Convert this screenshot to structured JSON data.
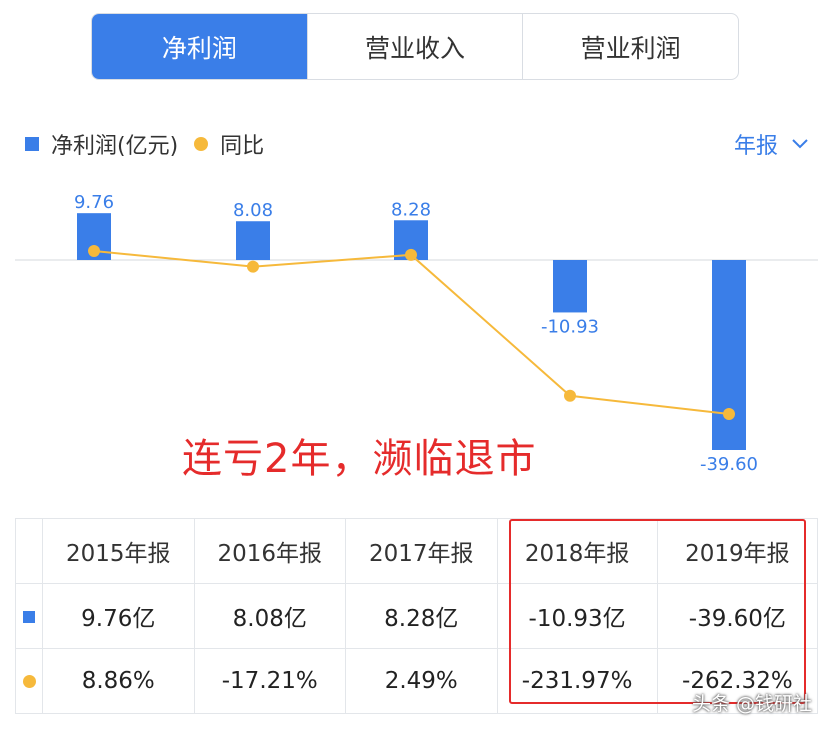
{
  "tabs": [
    {
      "label": "净利润",
      "active": true
    },
    {
      "label": "营业收入",
      "active": false
    },
    {
      "label": "营业利润",
      "active": false
    }
  ],
  "legend": {
    "series1": "净利润(亿元)",
    "series2": "同比"
  },
  "period": {
    "label": "年报"
  },
  "annotation": "连亏2年，濒临退市",
  "table": {
    "headers": [
      "2015年报",
      "2016年报",
      "2017年报",
      "2018年报",
      "2019年报"
    ],
    "profit_row": [
      "9.76亿",
      "8.08亿",
      "8.28亿",
      "-10.93亿",
      "-39.60亿"
    ],
    "yoy_row": [
      "8.86%",
      "-17.21%",
      "2.49%",
      "-231.97%",
      "-262.32%"
    ]
  },
  "watermark": "头条 @钱研社",
  "colors": {
    "bar": "#3a7ee8",
    "line": "#f6b93b",
    "accent": "#3a7ee8",
    "positive": "#e04848",
    "negative": "#2aa86a",
    "highlight": "#e52b2b"
  },
  "chart_data": {
    "type": "bar",
    "categories": [
      "2015年报",
      "2016年报",
      "2017年报",
      "2018年报",
      "2019年报"
    ],
    "series": [
      {
        "name": "净利润(亿元)",
        "type": "bar",
        "values": [
          9.76,
          8.08,
          8.28,
          -10.93,
          -39.6
        ],
        "labels": [
          "9.76",
          "8.08",
          "8.28",
          "-10.93",
          "-39.60"
        ]
      },
      {
        "name": "同比",
        "type": "line",
        "values": [
          8.86,
          -17.21,
          2.49,
          -231.97,
          -262.32
        ]
      }
    ]
  }
}
